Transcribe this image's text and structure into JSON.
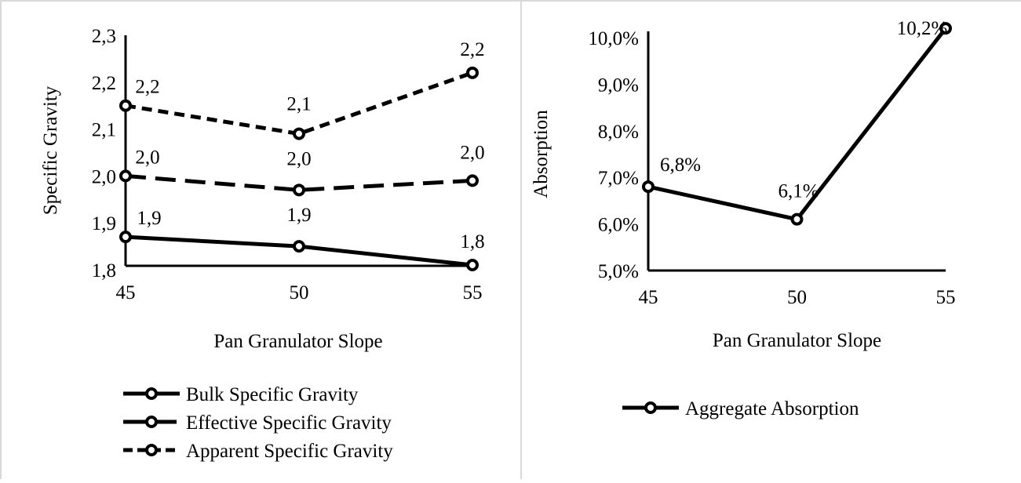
{
  "chart_data": [
    {
      "type": "line",
      "xlabel": "Pan Granulator Slope",
      "ylabel": "Specific Gravity",
      "ylim": [
        1.8,
        2.3
      ],
      "yticks": [
        "1,8",
        "1,9",
        "2,0",
        "2,1",
        "2,2",
        "2,3"
      ],
      "categories": [
        "45",
        "50",
        "55"
      ],
      "legend_position": "bottom",
      "series": [
        {
          "name": "Bulk Specific Gravity",
          "style": "solid",
          "values": [
            1.87,
            1.85,
            1.81
          ],
          "labels": [
            "1,9",
            "1,9",
            "1,8"
          ]
        },
        {
          "name": "Effective Specific Gravity",
          "style": "long-dash",
          "values": [
            2.0,
            1.97,
            1.99
          ],
          "labels": [
            "2,0",
            "2,0",
            "2,0"
          ]
        },
        {
          "name": "Apparent Specific Gravity",
          "style": "short-dash",
          "values": [
            2.15,
            2.09,
            2.22
          ],
          "labels": [
            "2,2",
            "2,1",
            "2,2"
          ]
        }
      ]
    },
    {
      "type": "line",
      "xlabel": "Pan Granulator Slope",
      "ylabel": "Absorption",
      "ylim": [
        5.0,
        10.0
      ],
      "yticks": [
        "5,0%",
        "6,0%",
        "7,0%",
        "8,0%",
        "9,0%",
        "10,0%"
      ],
      "categories": [
        "45",
        "50",
        "55"
      ],
      "legend_position": "bottom",
      "series": [
        {
          "name": "Aggregate Absorption",
          "style": "solid",
          "values": [
            6.8,
            6.1,
            10.2
          ],
          "labels": [
            "6,8%",
            "6,1%",
            "10,2%"
          ]
        }
      ]
    }
  ],
  "colors": {
    "line": "#000000",
    "marker_fill": "#ffffff",
    "frame": "#d9d9d9"
  }
}
